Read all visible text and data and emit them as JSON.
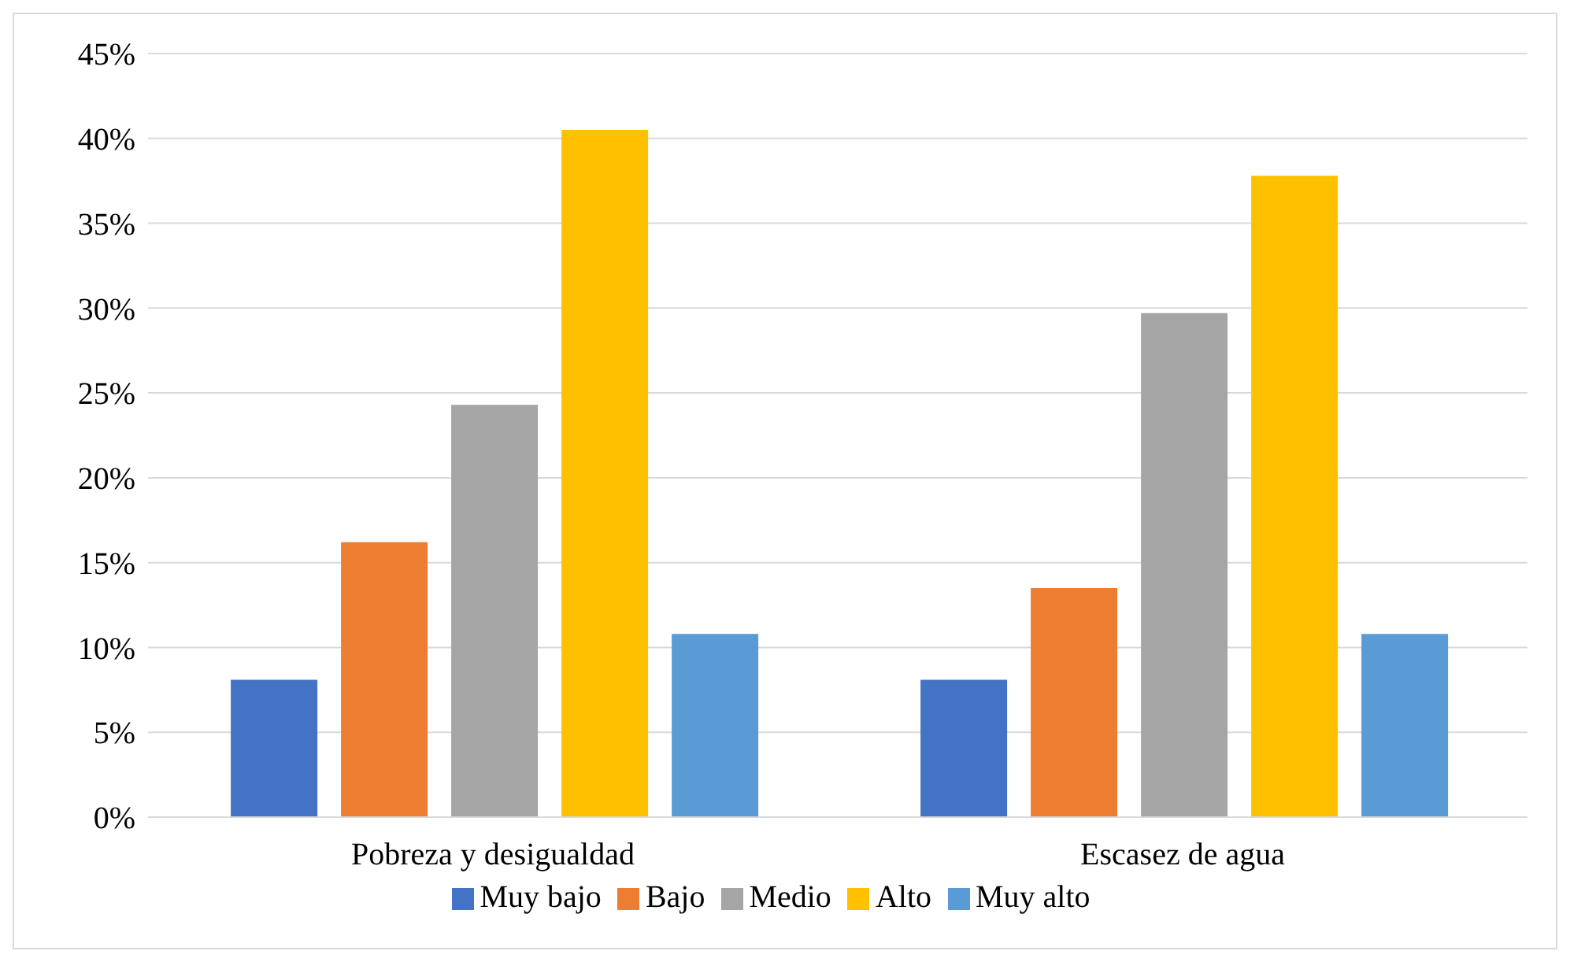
{
  "chart_data": {
    "type": "bar",
    "categories": [
      "Pobreza y desigualdad",
      "Escasez de agua"
    ],
    "series": [
      {
        "name": "Muy bajo",
        "color": "#4472c4",
        "values": [
          8.1,
          8.1
        ]
      },
      {
        "name": "Bajo",
        "color": "#ed7d31",
        "values": [
          16.2,
          13.5
        ]
      },
      {
        "name": "Medio",
        "color": "#a5a5a5",
        "values": [
          24.3,
          29.7
        ]
      },
      {
        "name": "Alto",
        "color": "#ffc000",
        "values": [
          40.5,
          37.8
        ]
      },
      {
        "name": "Muy alto",
        "color": "#5b9bd5",
        "values": [
          10.8,
          10.8
        ]
      }
    ],
    "ylim": [
      0,
      45
    ],
    "yticks": [
      {
        "value": 0,
        "label": "0%"
      },
      {
        "value": 5,
        "label": "5%"
      },
      {
        "value": 10,
        "label": "10%"
      },
      {
        "value": 15,
        "label": "15%"
      },
      {
        "value": 20,
        "label": "20%"
      },
      {
        "value": 25,
        "label": "25%"
      },
      {
        "value": 30,
        "label": "30%"
      },
      {
        "value": 35,
        "label": "35%"
      },
      {
        "value": 40,
        "label": "40%"
      },
      {
        "value": 45,
        "label": "45%"
      }
    ],
    "grid": "y",
    "legend": "bottom"
  }
}
